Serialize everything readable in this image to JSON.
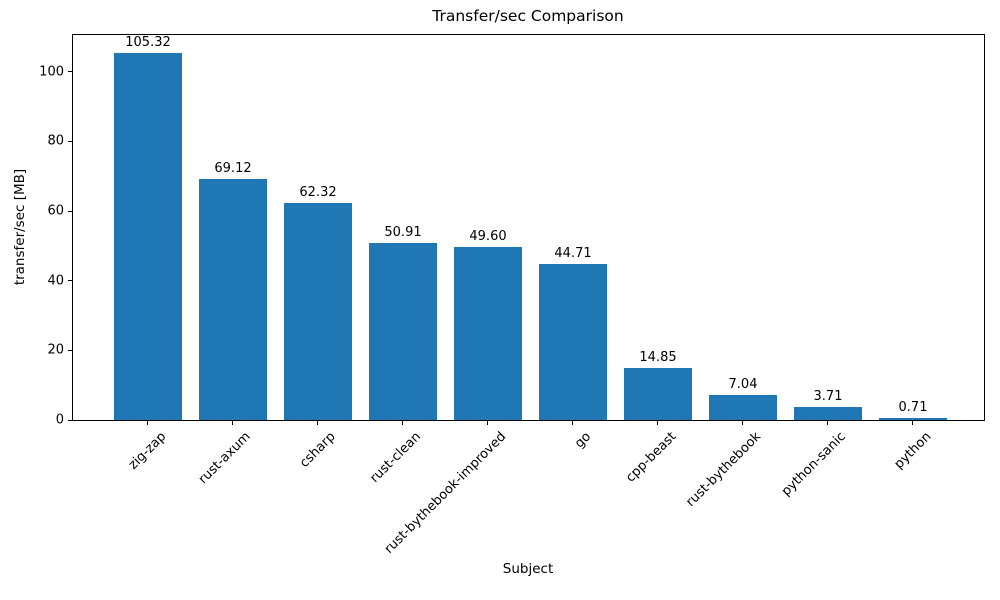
{
  "chart_data": {
    "type": "bar",
    "title": "Transfer/sec Comparison",
    "xlabel": "Subject",
    "ylabel": "transfer/sec [MB]",
    "categories": [
      "zig-zap",
      "rust-axum",
      "csharp",
      "rust-clean",
      "rust-bythebook-improved",
      "go",
      "cpp-beast",
      "rust-bythebook",
      "python-sanic",
      "python"
    ],
    "values": [
      105.32,
      69.12,
      62.32,
      50.91,
      49.6,
      44.71,
      14.85,
      7.04,
      3.71,
      0.71
    ],
    "value_labels": [
      "105.32",
      "69.12",
      "62.32",
      "50.91",
      "49.60",
      "44.71",
      "14.85",
      "7.04",
      "3.71",
      "0.71"
    ],
    "yticks": [
      0,
      20,
      40,
      60,
      80,
      100
    ],
    "ylim": [
      0,
      110.59
    ],
    "bar_color": "#1f77b4",
    "text_color": "#000000",
    "grid": false,
    "legend": null,
    "x_tick_rotation_deg": 45
  }
}
